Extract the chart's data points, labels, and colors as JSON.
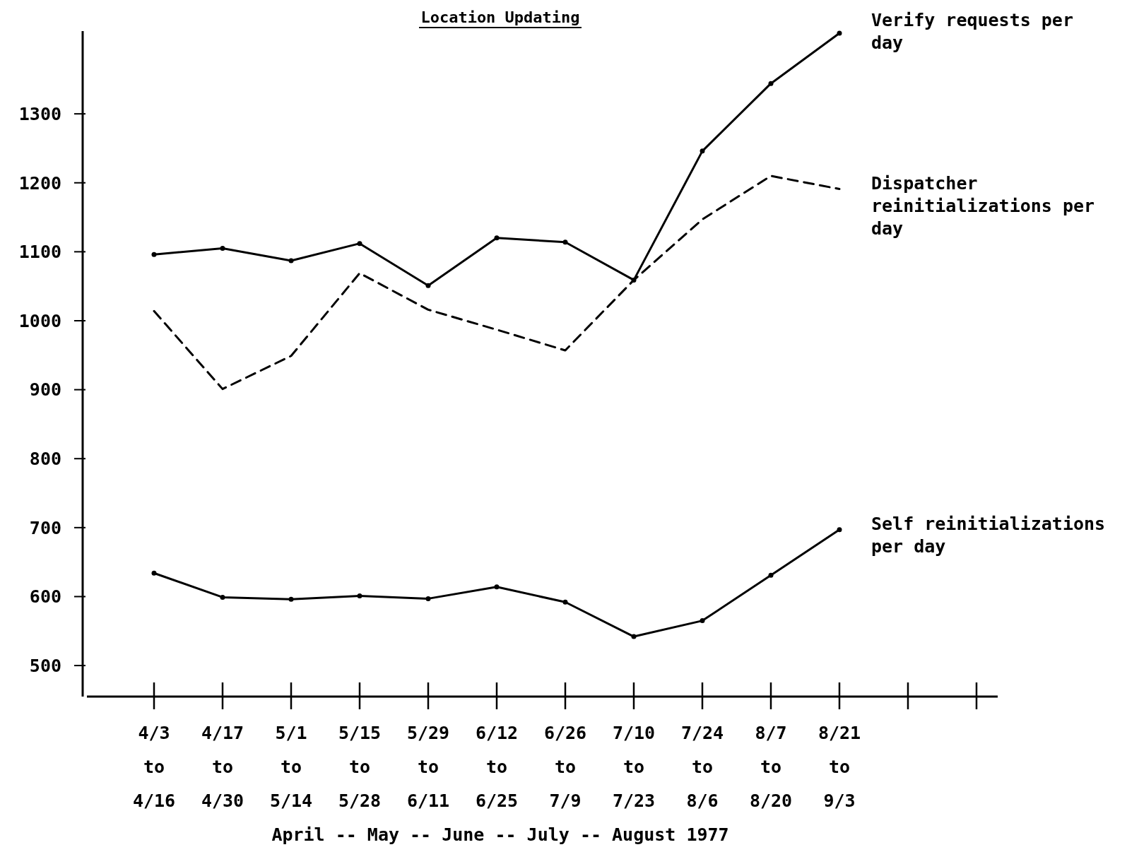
{
  "chart_data": {
    "type": "line",
    "title": "Location Updating",
    "xlabel": "April -- May -- June -- July -- August 1977",
    "categories": [
      "4/3 to 4/16",
      "4/17 to 4/30",
      "5/1 to 5/14",
      "5/15 to 5/28",
      "5/29 to 6/11",
      "6/12 to 6/25",
      "6/26 to 7/9",
      "7/10 to 7/23",
      "7/24 to 8/6",
      "8/7 to 8/20",
      "8/21 to 9/3",
      null,
      null
    ],
    "series": [
      {
        "name": "Verify requests per day",
        "color": "#000000",
        "line_style": "solid",
        "values": [
          1096,
          1105,
          1087,
          1112,
          1051,
          1120,
          1114,
          1059,
          1246,
          1344,
          1417,
          null,
          null
        ]
      },
      {
        "name": "Dispatcher reinitializations per day",
        "color": "#000000",
        "line_style": "dashed",
        "marker": "none",
        "values": [
          1014,
          901,
          949,
          1069,
          1016,
          987,
          957,
          1059,
          1147,
          1210,
          1191,
          null,
          null
        ]
      },
      {
        "name": "Self reinitializations per day",
        "color": "#000000",
        "line_style": "solid",
        "values": [
          634,
          599,
          596,
          601,
          597,
          614,
          592,
          542,
          565,
          631,
          697,
          null,
          null
        ]
      }
    ],
    "ylim": [
      455,
      1420
    ],
    "yticks": [
      500,
      600,
      700,
      800,
      900,
      1000,
      1100,
      1200,
      1300
    ],
    "marker": "circle",
    "grid": false
  }
}
